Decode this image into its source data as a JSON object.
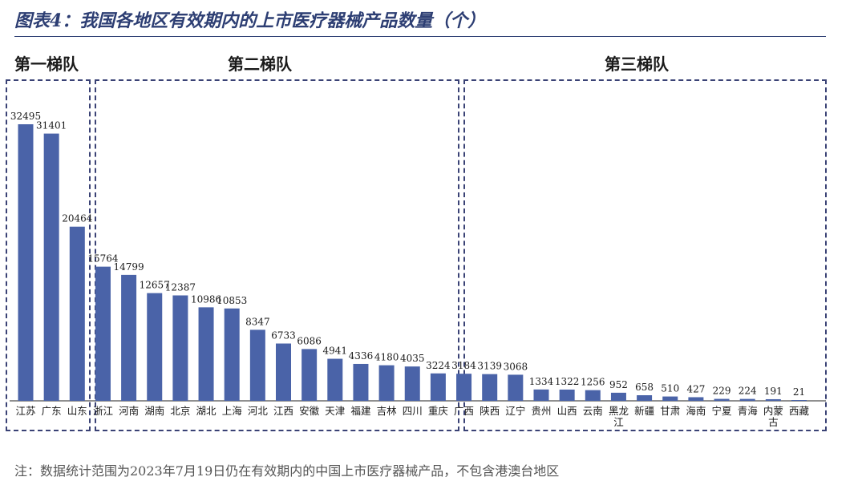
{
  "title": "图表4：我国各地区有效期内的上市医疗器械产品数量（个）",
  "tiers": [
    {
      "label": "第一梯队"
    },
    {
      "label": "第二梯队"
    },
    {
      "label": "第三梯队"
    }
  ],
  "note": "注：数据统计范围为2023年7月19日仍在有效期内的中国上市医疗器械产品，不包含港澳台地区",
  "colors": {
    "bar": "#4a63a8",
    "frame": "#3a4275",
    "title": "#2d3e73"
  },
  "chart_data": {
    "type": "bar",
    "title": "图表4：我国各地区有效期内的上市医疗器械产品数量（个）",
    "xlabel": "",
    "ylabel": "",
    "categories": [
      "江苏",
      "广东",
      "山东",
      "浙江",
      "河南",
      "湖南",
      "北京",
      "湖北",
      "上海",
      "河北",
      "江西",
      "安徽",
      "天津",
      "福建",
      "吉林",
      "四川",
      "重庆",
      "广西",
      "陕西",
      "辽宁",
      "贵州",
      "山西",
      "云南",
      "黑龙江",
      "新疆",
      "甘肃",
      "海南",
      "宁夏",
      "青海",
      "内蒙古",
      "西藏"
    ],
    "category_lines": [
      [
        "江苏"
      ],
      [
        "广东"
      ],
      [
        "山东"
      ],
      [
        "浙江"
      ],
      [
        "河南"
      ],
      [
        "湖南"
      ],
      [
        "北京"
      ],
      [
        "湖北"
      ],
      [
        "上海"
      ],
      [
        "河北"
      ],
      [
        "江西"
      ],
      [
        "安徽"
      ],
      [
        "天津"
      ],
      [
        "福建"
      ],
      [
        "吉林"
      ],
      [
        "四川"
      ],
      [
        "重庆"
      ],
      [
        "广西"
      ],
      [
        "陕西"
      ],
      [
        "辽宁"
      ],
      [
        "贵州"
      ],
      [
        "山西"
      ],
      [
        "云南"
      ],
      [
        "黑龙",
        "江"
      ],
      [
        "新疆"
      ],
      [
        "甘肃"
      ],
      [
        "海南"
      ],
      [
        "宁夏"
      ],
      [
        "青海"
      ],
      [
        "内蒙",
        "古"
      ],
      [
        "西藏"
      ]
    ],
    "values": [
      32495,
      31401,
      20464,
      15764,
      14799,
      12657,
      12387,
      10986,
      10853,
      8347,
      6733,
      6086,
      4941,
      4336,
      4180,
      4035,
      3224,
      3184,
      3139,
      3068,
      1334,
      1322,
      1256,
      952,
      658,
      510,
      427,
      229,
      224,
      191,
      21
    ],
    "value_labels": [
      "32495",
      "31401",
      "20464",
      "15764",
      "14799",
      "12657",
      "12387",
      "10986",
      "10853",
      "8347",
      "6733",
      "6086",
      "4941",
      "4336",
      "4180",
      "4035",
      "3224",
      "3184",
      "3139",
      "3068",
      "1334",
      "1322",
      "1256",
      "952",
      "658",
      "510",
      "427",
      "229",
      "224",
      "191",
      "21"
    ],
    "ylim": [
      0,
      35000
    ],
    "grid": false,
    "legend": "none"
  }
}
